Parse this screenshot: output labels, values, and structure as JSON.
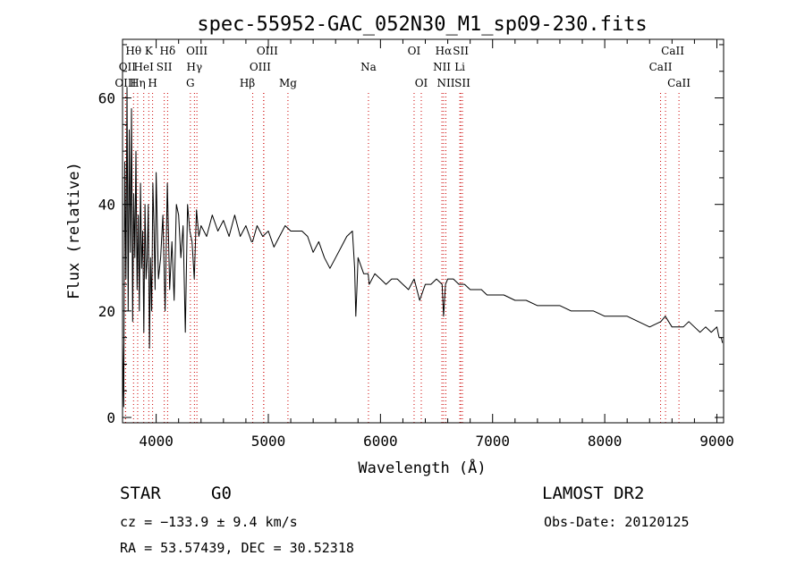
{
  "chart_data": {
    "type": "line",
    "title": "spec-55952-GAC_052N30_M1_sp09-230.fits",
    "xlabel": "Wavelength (Å)",
    "ylabel": "Flux (relative)",
    "xlim": [
      3700,
      9060
    ],
    "ylim": [
      -1,
      71
    ],
    "xticks": [
      4000,
      5000,
      6000,
      7000,
      8000,
      9000
    ],
    "yticks": [
      0,
      20,
      40,
      60
    ],
    "grid": false,
    "line_color": "#000000",
    "marker_color": "#cc0000",
    "series": [
      {
        "x": [
          3700,
          3710,
          3720,
          3730,
          3740,
          3750,
          3760,
          3770,
          3780,
          3790,
          3800,
          3810,
          3820,
          3830,
          3840,
          3850,
          3860,
          3870,
          3880,
          3890,
          3900,
          3910,
          3920,
          3930,
          3940,
          3950,
          3960,
          3970,
          3980,
          3990,
          4000,
          4020,
          4040,
          4060,
          4080,
          4100,
          4120,
          4140,
          4160,
          4180,
          4200,
          4220,
          4240,
          4260,
          4280,
          4300,
          4320,
          4340,
          4360,
          4380,
          4400,
          4450,
          4500,
          4550,
          4600,
          4650,
          4700,
          4750,
          4800,
          4850,
          4860,
          4900,
          4950,
          5000,
          5050,
          5100,
          5150,
          5200,
          5250,
          5300,
          5350,
          5400,
          5450,
          5500,
          5550,
          5600,
          5650,
          5700,
          5750,
          5770,
          5780,
          5790,
          5800,
          5850,
          5890,
          5900,
          5950,
          6000,
          6050,
          6100,
          6150,
          6200,
          6250,
          6300,
          6350,
          6400,
          6450,
          6500,
          6550,
          6563,
          6580,
          6600,
          6650,
          6700,
          6750,
          6800,
          6850,
          6900,
          6950,
          7000,
          7100,
          7200,
          7300,
          7400,
          7500,
          7600,
          7700,
          7800,
          7900,
          8000,
          8100,
          8200,
          8300,
          8400,
          8500,
          8540,
          8600,
          8660,
          8700,
          8750,
          8800,
          8850,
          8900,
          8950,
          9000,
          9020,
          9040,
          9050
        ],
        "y": [
          14,
          2,
          48,
          26,
          62,
          20,
          54,
          31,
          58,
          18,
          42,
          30,
          50,
          24,
          38,
          20,
          44,
          28,
          35,
          16,
          40,
          26,
          30,
          40,
          13,
          30,
          20,
          44,
          36,
          24,
          46,
          26,
          30,
          38,
          20,
          44,
          24,
          33,
          22,
          40,
          38,
          30,
          36,
          16,
          40,
          35,
          33,
          26,
          39,
          34,
          36,
          34,
          38,
          35,
          37,
          34,
          38,
          34,
          36,
          33,
          33,
          36,
          34,
          35,
          32,
          34,
          36,
          35,
          35,
          35,
          34,
          31,
          33,
          30,
          28,
          30,
          32,
          34,
          35,
          28,
          19,
          24,
          30,
          27,
          27,
          25,
          27,
          26,
          25,
          26,
          26,
          25,
          24,
          26,
          22,
          25,
          25,
          26,
          25,
          19,
          25,
          26,
          26,
          25,
          25,
          24,
          24,
          24,
          23,
          23,
          23,
          22,
          22,
          21,
          21,
          21,
          20,
          20,
          20,
          19,
          19,
          19,
          18,
          17,
          18,
          19,
          17,
          17,
          17,
          18,
          17,
          16,
          17,
          16,
          17,
          15,
          15,
          14
        ]
      }
    ],
    "line_markers": [
      {
        "name": "Hθ",
        "x": 3798,
        "row": 0,
        "dx": 0
      },
      {
        "name": "K",
        "x": 3934,
        "row": 0,
        "dx": 0
      },
      {
        "name": "Hδ",
        "x": 4102,
        "row": 0,
        "dx": 0
      },
      {
        "name": "OIII",
        "x": 4363,
        "row": 0,
        "dx": 0
      },
      {
        "name": "OIII",
        "x": 4959,
        "row": 0,
        "dx": 4
      },
      {
        "name": "OI",
        "x": 6300,
        "row": 0,
        "dx": 0
      },
      {
        "name": "Hα",
        "x": 6563,
        "row": 0,
        "dx": 0
      },
      {
        "name": "SII",
        "x": 6716,
        "row": 0,
        "dx": 0
      },
      {
        "name": "CaII",
        "x": 8542,
        "row": 0,
        "dx": 8
      },
      {
        "name": "OII",
        "x": 3727,
        "row": 1,
        "dx": 2
      },
      {
        "name": "HeI",
        "x": 3889,
        "row": 1,
        "dx": 0
      },
      {
        "name": "SII",
        "x": 4072,
        "row": 1,
        "dx": 0
      },
      {
        "name": "Hγ",
        "x": 4341,
        "row": 1,
        "dx": 0
      },
      {
        "name": "OIII",
        "x": 4959,
        "row": 1,
        "dx": -4
      },
      {
        "name": "Na",
        "x": 5893,
        "row": 1,
        "dx": 0
      },
      {
        "name": "NII",
        "x": 6548,
        "row": 1,
        "dx": 0
      },
      {
        "name": "Li",
        "x": 6708,
        "row": 1,
        "dx": 0
      },
      {
        "name": "CaII",
        "x": 8498,
        "row": 1,
        "dx": 0
      },
      {
        "name": "OIII",
        "x": 3727,
        "row": 2,
        "dx": 0
      },
      {
        "name": "Hη",
        "x": 3835,
        "row": 2,
        "dx": 0
      },
      {
        "name": "H",
        "x": 3968,
        "row": 2,
        "dx": 0
      },
      {
        "name": "G",
        "x": 4305,
        "row": 2,
        "dx": 0
      },
      {
        "name": "Hβ",
        "x": 4861,
        "row": 2,
        "dx": -6
      },
      {
        "name": "Mg",
        "x": 5175,
        "row": 2,
        "dx": 0
      },
      {
        "name": "OI",
        "x": 6364,
        "row": 2,
        "dx": 0
      },
      {
        "name": "NII",
        "x": 6583,
        "row": 2,
        "dx": 0
      },
      {
        "name": "SII",
        "x": 6731,
        "row": 2,
        "dx": 0
      },
      {
        "name": "CaII",
        "x": 8662,
        "row": 2,
        "dx": 0
      }
    ]
  },
  "info": {
    "object_class": "STAR",
    "subclass": "G0",
    "survey": "LAMOST DR2",
    "redshift": "cz = −133.9 ± 9.4 km/s",
    "obs_date": "Obs-Date: 20120125",
    "coords": "RA =  53.57439, DEC =  30.52318"
  }
}
